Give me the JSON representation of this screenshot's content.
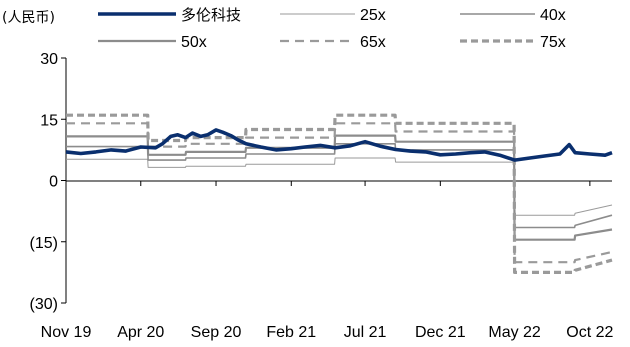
{
  "chart_data": {
    "type": "line",
    "unit_label": "(人民币)",
    "title": "",
    "xlabel": "",
    "ylabel": "",
    "ylim": [
      -30,
      30
    ],
    "y_ticks": [
      30,
      15,
      0,
      -15,
      -30
    ],
    "y_tick_labels": [
      "30",
      "15",
      "0",
      "(15)",
      "(30)"
    ],
    "x_range": [
      "2019-11-01",
      "2022-11-15"
    ],
    "x_ticks": [
      "2019-11-01",
      "2020-04-01",
      "2020-09-01",
      "2021-02-01",
      "2021-07-01",
      "2021-12-01",
      "2022-05-01",
      "2022-10-01"
    ],
    "x_tick_labels": [
      "Nov 19",
      "Apr 20",
      "Sep 20",
      "Feb 21",
      "Jul 21",
      "Dec 21",
      "May 22",
      "Oct 22"
    ],
    "grid": false,
    "legend_position": "top",
    "series": [
      {
        "name": "多伦科技",
        "color": "#0a2f6e",
        "style": "thick-solid",
        "x": [
          "2019-11-01",
          "2019-12-01",
          "2020-01-01",
          "2020-02-01",
          "2020-03-01",
          "2020-04-01",
          "2020-05-01",
          "2020-05-15",
          "2020-06-01",
          "2020-06-15",
          "2020-07-01",
          "2020-07-15",
          "2020-08-01",
          "2020-08-15",
          "2020-09-01",
          "2020-09-15",
          "2020-10-01",
          "2020-10-15",
          "2020-11-01",
          "2020-12-01",
          "2021-01-01",
          "2021-02-01",
          "2021-03-01",
          "2021-04-01",
          "2021-05-01",
          "2021-06-01",
          "2021-07-01",
          "2021-08-01",
          "2021-09-01",
          "2021-10-01",
          "2021-11-01",
          "2021-12-01",
          "2022-01-01",
          "2022-02-01",
          "2022-03-01",
          "2022-04-01",
          "2022-05-01",
          "2022-06-01",
          "2022-07-01",
          "2022-08-01",
          "2022-08-20",
          "2022-09-01",
          "2022-10-01",
          "2022-11-01",
          "2022-11-15"
        ],
        "y": [
          7.0,
          6.6,
          7.0,
          7.5,
          7.2,
          8.2,
          8.0,
          9.0,
          10.8,
          11.2,
          10.5,
          11.6,
          10.8,
          11.2,
          12.4,
          11.8,
          11.0,
          10.0,
          9.0,
          8.2,
          7.5,
          7.8,
          8.2,
          8.6,
          8.0,
          8.5,
          9.5,
          8.4,
          7.6,
          7.2,
          7.0,
          6.3,
          6.5,
          6.8,
          7.0,
          6.2,
          5.0,
          5.5,
          6.0,
          6.5,
          8.8,
          6.8,
          6.5,
          6.2,
          6.8
        ]
      },
      {
        "name": "25x",
        "color": "#9a9a9a",
        "style": "thin-solid",
        "x": [
          "2019-11-01",
          "2020-04-15",
          "2020-04-16",
          "2020-07-01",
          "2020-07-02",
          "2020-10-31",
          "2020-11-01",
          "2021-04-30",
          "2021-05-01",
          "2021-08-31",
          "2021-09-01",
          "2022-04-30",
          "2022-05-01",
          "2022-08-31",
          "2022-09-01",
          "2022-11-15"
        ],
        "y": [
          5.2,
          5.2,
          3.2,
          3.2,
          3.5,
          3.5,
          4.0,
          4.0,
          5.5,
          5.5,
          4.5,
          4.5,
          -8.5,
          -8.5,
          -8.0,
          -6.0
        ]
      },
      {
        "name": "40x",
        "color": "#8c8c8c",
        "style": "solid",
        "x": [
          "2019-11-01",
          "2020-04-15",
          "2020-04-16",
          "2020-07-01",
          "2020-07-02",
          "2020-10-31",
          "2020-11-01",
          "2021-04-30",
          "2021-05-01",
          "2021-08-31",
          "2021-09-01",
          "2022-04-30",
          "2022-05-01",
          "2022-08-31",
          "2022-09-01",
          "2022-11-15"
        ],
        "y": [
          8.3,
          8.3,
          5.0,
          5.0,
          5.5,
          5.5,
          6.5,
          6.5,
          9.0,
          9.0,
          7.5,
          7.5,
          -11.5,
          -11.5,
          -11.0,
          -8.5
        ]
      },
      {
        "name": "50x",
        "color": "#8c8c8c",
        "style": "medium-solid",
        "x": [
          "2019-11-01",
          "2020-04-15",
          "2020-04-16",
          "2020-07-01",
          "2020-07-02",
          "2020-10-31",
          "2020-11-01",
          "2021-04-30",
          "2021-05-01",
          "2021-08-31",
          "2021-09-01",
          "2022-04-30",
          "2022-05-01",
          "2022-08-31",
          "2022-09-01",
          "2022-11-15"
        ],
        "y": [
          10.8,
          10.8,
          6.3,
          6.3,
          7.0,
          7.0,
          8.0,
          8.0,
          11.0,
          11.0,
          9.5,
          9.5,
          -14.5,
          -14.5,
          -13.5,
          -12.0
        ]
      },
      {
        "name": "65x",
        "color": "#9a9a9a",
        "style": "dashed",
        "x": [
          "2019-11-01",
          "2020-04-15",
          "2020-04-16",
          "2020-07-01",
          "2020-07-02",
          "2020-10-31",
          "2020-11-01",
          "2021-04-30",
          "2021-05-01",
          "2021-08-31",
          "2021-09-01",
          "2022-04-30",
          "2022-05-01",
          "2022-08-31",
          "2022-09-01",
          "2022-11-15"
        ],
        "y": [
          14.0,
          14.0,
          8.3,
          8.3,
          9.0,
          9.0,
          10.5,
          10.5,
          14.0,
          14.0,
          12.0,
          12.0,
          -20.0,
          -20.0,
          -19.5,
          -17.5
        ]
      },
      {
        "name": "75x",
        "color": "#9a9a9a",
        "style": "thick-dashed",
        "x": [
          "2019-11-01",
          "2020-04-15",
          "2020-04-16",
          "2020-07-01",
          "2020-07-02",
          "2020-10-31",
          "2020-11-01",
          "2021-04-30",
          "2021-05-01",
          "2021-08-31",
          "2021-09-01",
          "2022-04-30",
          "2022-05-01",
          "2022-08-31",
          "2022-09-01",
          "2022-11-15"
        ],
        "y": [
          16.0,
          16.0,
          9.8,
          9.8,
          10.5,
          10.5,
          12.5,
          12.5,
          16.0,
          16.0,
          14.0,
          14.0,
          -22.5,
          -22.5,
          -22.0,
          -19.5
        ]
      }
    ]
  }
}
